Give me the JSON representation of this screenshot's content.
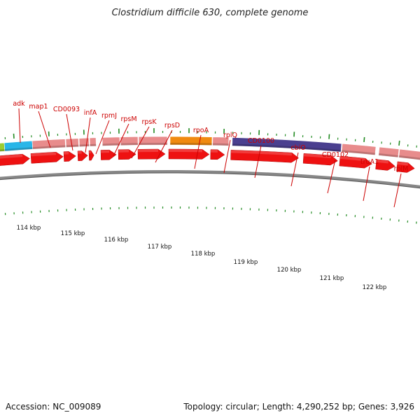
{
  "title": "Clostridium difficile 630, complete genome",
  "footer": {
    "accession": "Accession: NC_009089",
    "summary": "Topology: circular; Length: 4,290,252 bp; Genes: 3,926"
  },
  "colors": {
    "title": "#222222",
    "gene_label": "#cc0000",
    "leader": "#cc0000",
    "cds_arrow": "#ee1111",
    "backbone": "#888888",
    "gc_tick": "#228b22",
    "feature_pink": "#e88c8c",
    "feature_cyan": "#29b6e8",
    "feature_orange": "#f08a10",
    "feature_purple": "#4a3f8f",
    "feature_green": "#9acd32"
  },
  "gene_labels": [
    "adk",
    "map1",
    "CD0093",
    "infA",
    "rpmJ",
    "rpsM",
    "rpsK",
    "rpsD",
    "rpoA",
    "rplQ",
    "CD0100",
    "cbiO",
    "CD0102",
    "truA1",
    "rplM"
  ],
  "kbp_ticks": [
    "114 kbp",
    "115 kbp",
    "116 kbp",
    "117 kbp",
    "118 kbp",
    "119 kbp",
    "120 kbp",
    "121 kbp",
    "122 kbp"
  ]
}
